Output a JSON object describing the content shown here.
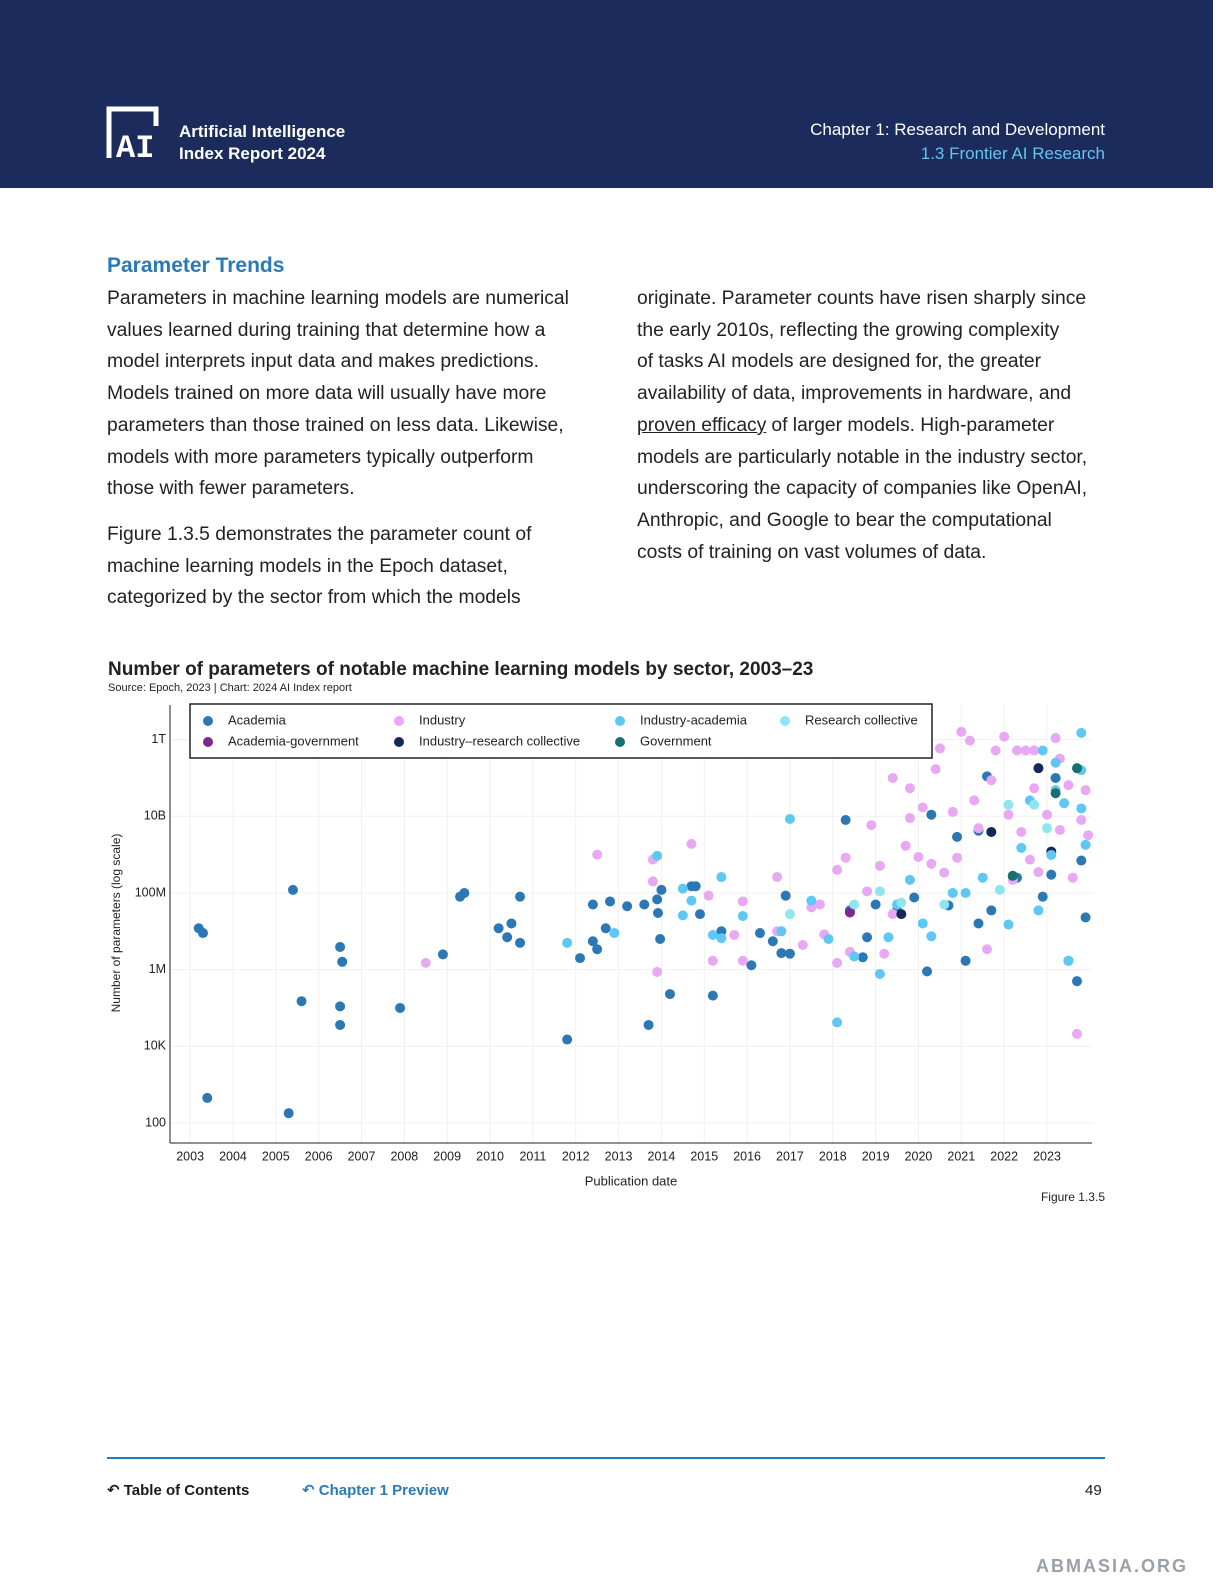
{
  "header": {
    "report_line1": "Artificial Intelligence",
    "report_line2": "Index Report 2024",
    "chapter": "Chapter 1: Research and Development",
    "section": "1.3 Frontier AI Research"
  },
  "body": {
    "heading": "Parameter Trends",
    "left_column": [
      [
        "Parameters in machine learning models are numerical",
        "values learned during training that determine how a",
        "model interprets input data and makes predictions.",
        "Models trained on more data will usually have more",
        "parameters than those trained on less data. Likewise,",
        "models with more parameters typically outperform",
        "those with fewer parameters."
      ],
      [
        "Figure 1.3.5 demonstrates the parameter count of",
        "machine learning models in the Epoch dataset,",
        "categorized by the sector from which the models"
      ]
    ],
    "right_column": [
      "originate. Parameter counts have risen sharply since",
      "the early 2010s, reflecting the growing complexity",
      "of tasks AI models are designed for, the greater",
      "availability of data, improvements in hardware, and",
      {
        "link": "proven efficacy",
        "text": "of larger models. High-parameter"
      },
      "models are particularly notable in the industry sector,",
      "underscoring the capacity of companies like OpenAI,",
      "Anthropic, and Google to bear the computational",
      "costs of training on vast volumes of data."
    ]
  },
  "chart_data": {
    "type": "scatter",
    "title": "Number of parameters of notable machine learning models by sector, 2003–23",
    "source": "Source: Epoch, 2023 | Chart: 2024 AI Index report",
    "x_label": "Publication date",
    "y_label": "Number of parameters (log scale)",
    "figure_label": "Figure 1.3.5",
    "log_y": true,
    "grid": true,
    "legend": "top-left",
    "xlim": [
      2002.53,
      2024.05
    ],
    "xticks": [
      2003,
      2004,
      2005,
      2006,
      2007,
      2008,
      2009,
      2010,
      2011,
      2012,
      2013,
      2014,
      2015,
      2016,
      2017,
      2018,
      2019,
      2020,
      2021,
      2022,
      2023
    ],
    "ylim": [
      30,
      8000000000000.0
    ],
    "yticks": [
      100,
      {
        "value": 10000,
        "label": "10K"
      },
      {
        "value": 1000000,
        "label": "1M"
      },
      {
        "value": 100000000,
        "label": "100M"
      },
      {
        "value": 10000000000,
        "label": "10B"
      },
      {
        "value": 1000000000000,
        "label": "1T"
      }
    ],
    "series": [
      {
        "name": "Academia",
        "color": "#2b78b5",
        "x": [
          2003.2,
          2003.3,
          2003.4,
          2005.3,
          2005.4,
          2005.6,
          2006.5,
          2006.5,
          2006.5,
          2006.55,
          2007.9,
          2008.9,
          2009.3,
          2009.4,
          2010.2,
          2010.4,
          2010.5,
          2010.7,
          2010.7,
          2011.8,
          2012.1,
          2012.4,
          2012.4,
          2012.5,
          2012.7,
          2012.8,
          2013.2,
          2013.6,
          2013.7,
          2013.9,
          2013.92,
          2014.0,
          2013.97,
          2014.2,
          2014.7,
          2014.8,
          2014.9,
          2015.2,
          2015.4,
          2016.1,
          2016.3,
          2016.6,
          2016.8,
          2017.0,
          2016.9,
          2018.3,
          2018.4,
          2018.7,
          2018.8,
          2019.0,
          2019.5,
          2019.9,
          2020.2,
          2020.3,
          2020.7,
          2020.9,
          2021.1,
          2021.4,
          2021.4,
          2021.7,
          2022.3,
          2022.9,
          2023.1,
          2023.8,
          2023.9,
          2023.7,
          2023.5,
          2023.2,
          2021.6
        ],
        "values": [
          12000000.0,
          9000000.0,
          450,
          180,
          120000000.0,
          150000.0,
          36000.0,
          110000.0,
          3900000.0,
          1600000.0,
          100000.0,
          2500000.0,
          80000000.0,
          100000000.0,
          12000000.0,
          7000000.0,
          16000000.0,
          80000000.0,
          5000000.0,
          15000.0,
          2000000.0,
          50000000.0,
          5500000.0,
          3400000.0,
          12000000.0,
          60000000.0,
          45000000.0,
          50000000.0,
          36000.0,
          68000000.0,
          30000000.0,
          120000000.0,
          6300000.0,
          230000.0,
          150000000.0,
          150000000.0,
          28000000.0,
          210000.0,
          10000000.0,
          1300000.0,
          9000000.0,
          5500000.0,
          2700000.0,
          2600000.0,
          85000000.0,
          8000000000.0,
          35000000.0,
          2100000.0,
          7000000.0,
          50000000.0,
          35000000.0,
          76000000.0,
          900000.0,
          11000000000.0,
          47000000.0,
          2900000000.0,
          1700000.0,
          16000000.0,
          4200000000.0,
          35000000.0,
          250000000.0,
          80000000.0,
          300000000.0,
          700000000.0,
          23000000.0,
          500000.0,
          1700000.0,
          100000000000.0,
          110000000000.0
        ]
      },
      {
        "name": "Academia-government",
        "color": "#7b2a8e",
        "x": [
          2018.4
        ],
        "values": [
          31000000.0
        ]
      },
      {
        "name": "Industry",
        "color": "#e9a8f3",
        "x": [
          2008.5,
          2012.5,
          2013.8,
          2013.8,
          2013.9,
          2014.7,
          2015.1,
          2015.2,
          2015.7,
          2015.9,
          2015.9,
          2016.7,
          2016.7,
          2017.3,
          2017.5,
          2017.7,
          2017.8,
          2018.1,
          2018.1,
          2018.3,
          2018.4,
          2018.8,
          2018.9,
          2019.1,
          2019.2,
          2019.4,
          2019.4,
          2019.8,
          2019.7,
          2019.8,
          2020.0,
          2020.1,
          2020.3,
          2020.4,
          2020.5,
          2020.6,
          2020.8,
          2020.9,
          2021.0,
          2021.2,
          2021.3,
          2021.4,
          2021.6,
          2021.7,
          2021.8,
          2022.0,
          2022.1,
          2022.3,
          2022.4,
          2022.5,
          2022.6,
          2022.7,
          2022.8,
          2023.0,
          2023.2,
          2023.3,
          2023.5,
          2023.7,
          2023.8,
          2023.9,
          2023.96,
          2023.6,
          2023.3,
          2022.7,
          2022.2
        ],
        "values": [
          1500000.0,
          1000000000.0,
          740000000.0,
          200000000.0,
          870000.0,
          1900000000.0,
          85000000.0,
          1700000.0,
          8000000.0,
          1700000.0,
          60000000.0,
          260000000.0,
          10000000.0,
          4400000.0,
          42000000.0,
          50000000.0,
          8300000.0,
          1500000.0,
          400000000.0,
          830000000.0,
          2900000.0,
          110000000.0,
          5900000000.0,
          510000000.0,
          2600000.0,
          28000000.0,
          100000000000.0,
          54000000000.0,
          1700000000.0,
          9000000000.0,
          870000000.0,
          17000000000.0,
          580000000.0,
          170000000000.0,
          590000000000.0,
          340000000.0,
          13000000000.0,
          830000000.0,
          1600000000000.0,
          940000000000.0,
          26000000000.0,
          4900000000.0,
          3400000.0,
          87000000000.0,
          520000000000.0,
          1200000000000.0,
          11000000000.0,
          520000000000.0,
          3900000000.0,
          520000000000.0,
          740000000.0,
          54000000000.0,
          350000000.0,
          11000000000.0,
          1100000000000.0,
          320000000000.0,
          65000000000.0,
          21000.0,
          8000000000.0,
          48000000000.0,
          3200000000.0,
          250000000.0,
          4400000000.0,
          520000000000.0,
          220000000.0
        ]
      },
      {
        "name": "Industry–research collective",
        "color": "#14285a",
        "x": [
          2022.8,
          2019.6,
          2023.1,
          2021.7
        ],
        "values": [
          180000000000.0,
          28000000.0,
          1200000000.0,
          3900000000.0
        ]
      },
      {
        "name": "Industry-academia",
        "color": "#5ec7f3",
        "x": [
          2011.8,
          2012.9,
          2013.9,
          2014.5,
          2014.5,
          2014.7,
          2015.2,
          2015.4,
          2015.4,
          2015.9,
          2016.8,
          2017.0,
          2017.5,
          2017.9,
          2018.1,
          2018.5,
          2019.1,
          2019.3,
          2019.5,
          2019.8,
          2020.1,
          2020.3,
          2020.8,
          2021.1,
          2021.5,
          2022.1,
          2022.4,
          2022.6,
          2022.9,
          2023.1,
          2023.2,
          2023.4,
          2023.5,
          2023.8,
          2023.8,
          2023.8,
          2023.9,
          2022.8,
          2023.2
        ],
        "values": [
          5000000.0,
          9000000.0,
          930000000.0,
          130000000.0,
          26000000.0,
          63000000.0,
          8000000.0,
          260000000.0,
          6600000.0,
          25000000.0,
          10000000.0,
          8500000000.0,
          63000000.0,
          6300000.0,
          42000.0,
          2200000.0,
          770000.0,
          7000000.0,
          50000000.0,
          220000000.0,
          16000000.0,
          7400000.0,
          100000000.0,
          100000000.0,
          250000000.0,
          15000000.0,
          1500000000.0,
          26000000000.0,
          520000000000.0,
          980000000.0,
          250000000000.0,
          22000000000.0,
          1700000.0,
          1500000000000.0,
          160000000000.0,
          16000000000.0,
          1800000000.0,
          35000000.0,
          48000000000.0
        ]
      },
      {
        "name": "Government",
        "color": "#17706f",
        "x": [
          2023.7,
          2023.2,
          2022.2
        ],
        "values": [
          180000000000.0,
          40000000000.0,
          280000000.0
        ]
      },
      {
        "name": "Research collective",
        "color": "#8fe5f0",
        "x": [
          2017.0,
          2018.5,
          2019.1,
          2019.6,
          2020.6,
          2021.9,
          2022.1,
          2022.7,
          2023.0
        ],
        "values": [
          28000000.0,
          50000000.0,
          110000000.0,
          56000000.0,
          50000000.0,
          120000000.0,
          20000000000.0,
          20000000000.0,
          4900000000.0
        ]
      }
    ]
  },
  "footer": {
    "toc": "Table of Contents",
    "chapter_preview": "Chapter 1 Preview",
    "page_number": "49",
    "watermark": "ABMASIA.ORG"
  }
}
